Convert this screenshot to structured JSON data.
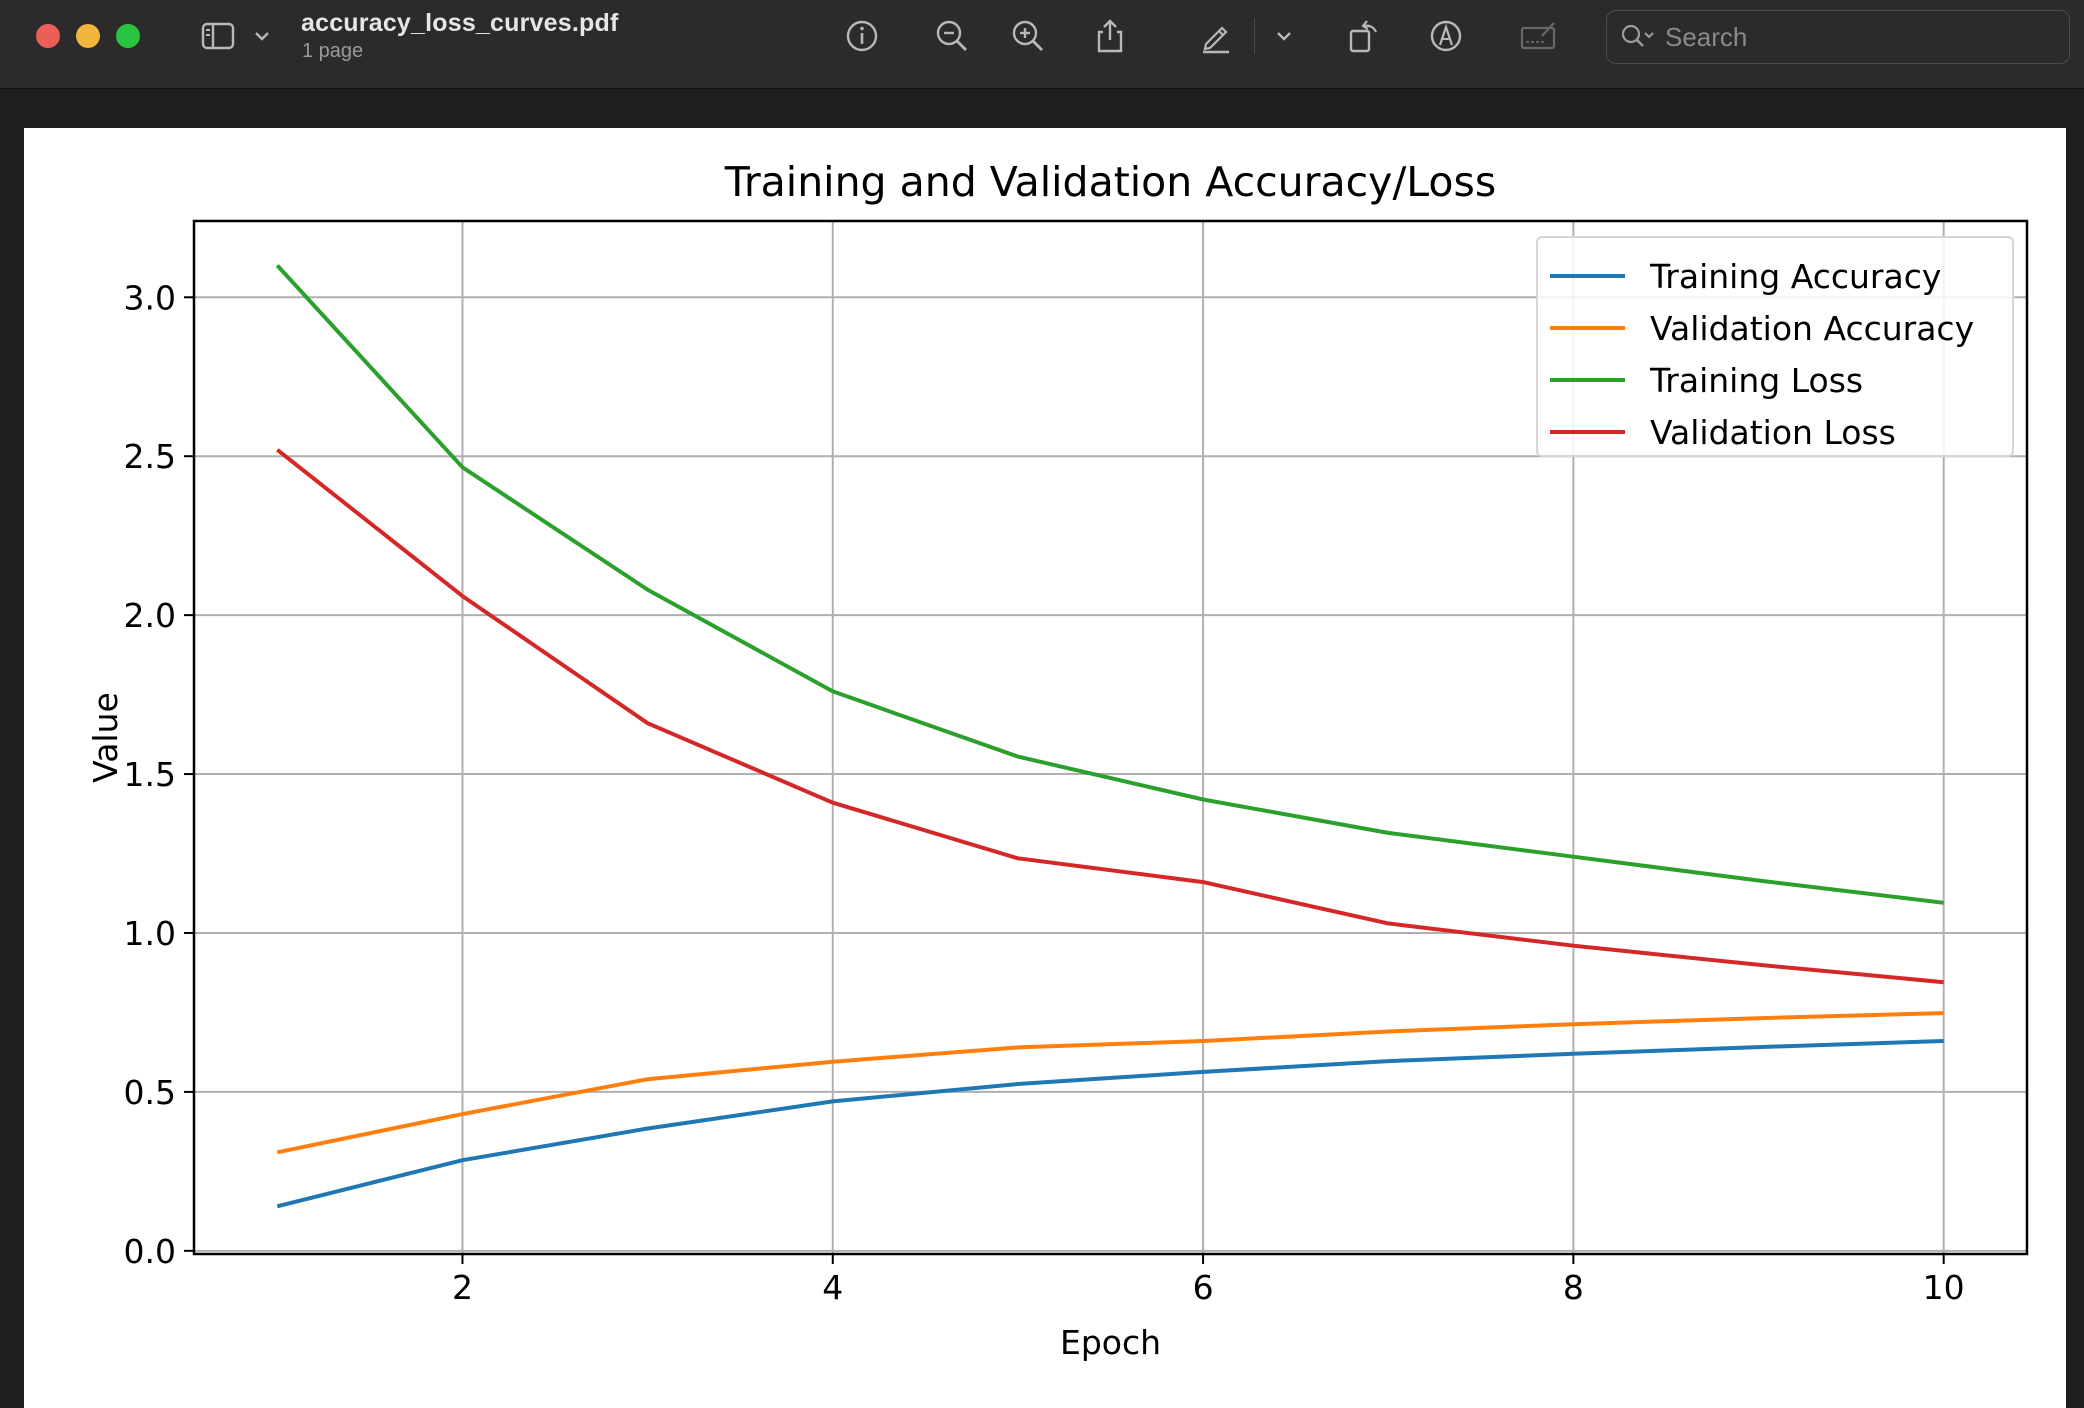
{
  "window": {
    "file_name": "accuracy_loss_curves.pdf",
    "page_count": "1 page"
  },
  "toolbar": {
    "icons": [
      "sidebar-icon",
      "chevron-down-icon",
      "info-icon",
      "zoom-out-icon",
      "zoom-in-icon",
      "share-icon",
      "markup-pencil-icon",
      "chevron-down-icon",
      "rotate-icon",
      "annotate-icon",
      "signature-icon"
    ],
    "search_placeholder": "Search"
  },
  "colors": {
    "training_accuracy": "#1f77b4",
    "validation_accuracy": "#ff7f0e",
    "training_loss": "#2ca02c",
    "validation_loss": "#d62728"
  },
  "chart_data": {
    "type": "line",
    "title": "Training and Validation Accuracy/Loss",
    "xlabel": "Epoch",
    "ylabel": "Value",
    "xlim": [
      0.55,
      10.45
    ],
    "ylim": [
      -0.01,
      3.24
    ],
    "xticks": [
      2,
      4,
      6,
      8,
      10
    ],
    "xtick_labels": [
      "2",
      "4",
      "6",
      "8",
      "10"
    ],
    "yticks": [
      0.0,
      0.5,
      1.0,
      1.5,
      2.0,
      2.5,
      3.0
    ],
    "ytick_labels": [
      "0.0",
      "0.5",
      "1.0",
      "1.5",
      "2.0",
      "2.5",
      "3.0"
    ],
    "grid": true,
    "legend_position": "top-right",
    "x": [
      1,
      2,
      3,
      4,
      5,
      6,
      7,
      8,
      9,
      10
    ],
    "series": [
      {
        "name": "Training Accuracy",
        "color": "#1f77b4",
        "values": [
          0.14,
          0.285,
          0.385,
          0.47,
          0.525,
          0.563,
          0.597,
          0.62,
          0.641,
          0.66
        ]
      },
      {
        "name": "Validation Accuracy",
        "color": "#ff7f0e",
        "values": [
          0.31,
          0.43,
          0.54,
          0.595,
          0.64,
          0.66,
          0.69,
          0.713,
          0.732,
          0.748
        ]
      },
      {
        "name": "Training Loss",
        "color": "#2ca02c",
        "values": [
          3.1,
          2.465,
          2.08,
          1.76,
          1.555,
          1.42,
          1.315,
          1.24,
          1.165,
          1.095
        ]
      },
      {
        "name": "Validation Loss",
        "color": "#d62728",
        "values": [
          2.52,
          2.06,
          1.66,
          1.41,
          1.235,
          1.16,
          1.03,
          0.96,
          0.9,
          0.845
        ]
      }
    ]
  }
}
